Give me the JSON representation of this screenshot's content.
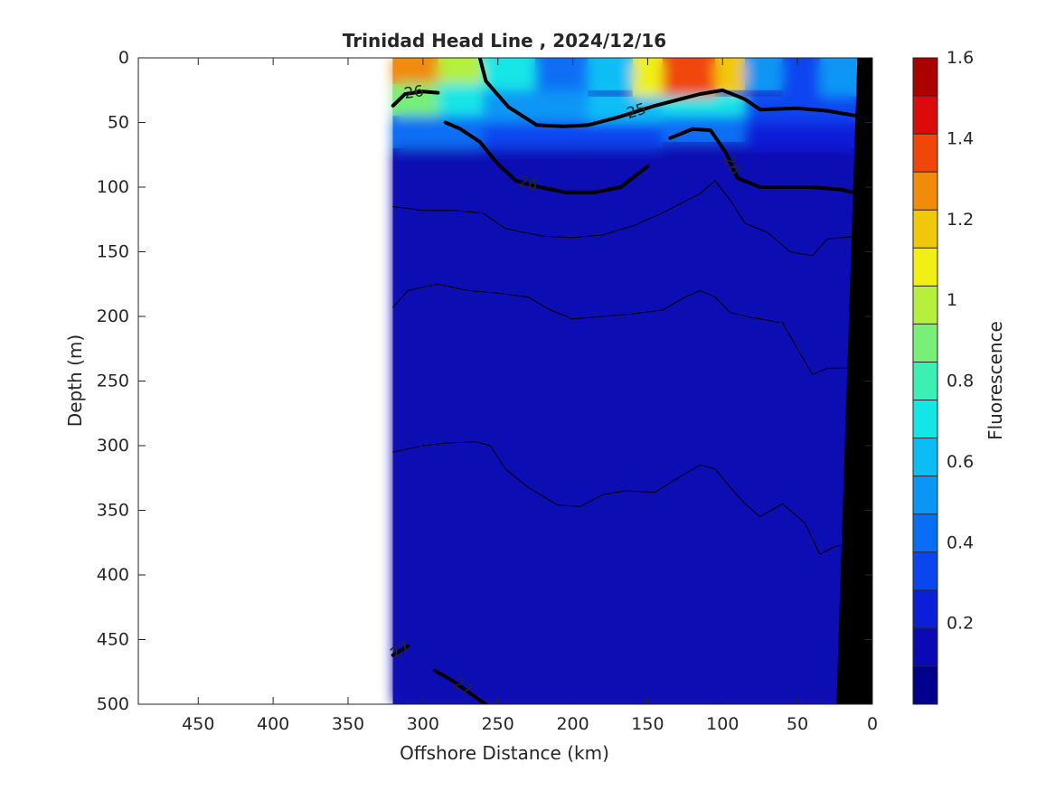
{
  "chart_data": {
    "type": "heatmap",
    "title": "Trinidad Head Line , 2024/12/16",
    "xlabel": "Offshore Distance (km)",
    "ylabel": "Depth (m)",
    "colorbar_label": "Fluorescence",
    "xlim": [
      490,
      0
    ],
    "ylim": [
      0,
      500
    ],
    "x_ticks": [
      "450",
      "400",
      "350",
      "300",
      "250",
      "200",
      "150",
      "100",
      "50",
      "0"
    ],
    "y_ticks": [
      "0",
      "50",
      "100",
      "150",
      "200",
      "250",
      "300",
      "350",
      "400",
      "450",
      "500"
    ],
    "colorbar_ticks": [
      "1.6",
      "1.4",
      "1.2",
      "1",
      "0.8",
      "0.6",
      "0.4",
      "0.2"
    ],
    "colorbar_range": [
      0,
      1.6
    ],
    "data_extent_km": [
      320,
      10
    ],
    "colormap": [
      "#00008f",
      "#0a0ab4",
      "#0a1fd7",
      "#0a45f0",
      "#0a6ef5",
      "#0a96f5",
      "#0abef5",
      "#14e6e6",
      "#3cf0b4",
      "#78f078",
      "#b4f03c",
      "#f0f014",
      "#f0c80a",
      "#f08c0a",
      "#f0460a",
      "#dc0a0a",
      "#aa0000"
    ],
    "cells": [
      {
        "x_km": [
          320,
          290
        ],
        "depth_m": [
          0,
          20
        ],
        "value": 1.25
      },
      {
        "x_km": [
          290,
          260
        ],
        "depth_m": [
          0,
          20
        ],
        "value": 1.0
      },
      {
        "x_km": [
          260,
          225
        ],
        "depth_m": [
          0,
          25
        ],
        "value": 0.7
      },
      {
        "x_km": [
          225,
          190
        ],
        "depth_m": [
          0,
          25
        ],
        "value": 0.45
      },
      {
        "x_km": [
          190,
          160
        ],
        "depth_m": [
          0,
          25
        ],
        "value": 0.65
      },
      {
        "x_km": [
          160,
          140
        ],
        "depth_m": [
          0,
          30
        ],
        "value": 1.05
      },
      {
        "x_km": [
          140,
          105
        ],
        "depth_m": [
          0,
          30
        ],
        "value": 1.4
      },
      {
        "x_km": [
          105,
          85
        ],
        "depth_m": [
          0,
          25
        ],
        "value": 1.15
      },
      {
        "x_km": [
          85,
          60
        ],
        "depth_m": [
          0,
          25
        ],
        "value": 0.55
      },
      {
        "x_km": [
          60,
          35
        ],
        "depth_m": [
          0,
          30
        ],
        "value": 0.35
      },
      {
        "x_km": [
          35,
          10
        ],
        "depth_m": [
          0,
          30
        ],
        "value": 0.5
      },
      {
        "x_km": [
          320,
          290
        ],
        "depth_m": [
          20,
          45
        ],
        "value": 0.85
      },
      {
        "x_km": [
          290,
          260
        ],
        "depth_m": [
          20,
          45
        ],
        "value": 0.7
      },
      {
        "x_km": [
          260,
          225
        ],
        "depth_m": [
          25,
          50
        ],
        "value": 0.55
      },
      {
        "x_km": [
          225,
          190
        ],
        "depth_m": [
          25,
          50
        ],
        "value": 0.5
      },
      {
        "x_km": [
          190,
          140
        ],
        "depth_m": [
          30,
          50
        ],
        "value": 0.6
      },
      {
        "x_km": [
          140,
          85
        ],
        "depth_m": [
          30,
          45
        ],
        "value": 0.7
      },
      {
        "x_km": [
          85,
          10
        ],
        "depth_m": [
          30,
          50
        ],
        "value": 0.35
      },
      {
        "x_km": [
          320,
          260
        ],
        "depth_m": [
          45,
          70
        ],
        "value": 0.45
      },
      {
        "x_km": [
          260,
          190
        ],
        "depth_m": [
          50,
          70
        ],
        "value": 0.35
      },
      {
        "x_km": [
          190,
          140
        ],
        "depth_m": [
          50,
          70
        ],
        "value": 0.3
      },
      {
        "x_km": [
          140,
          85
        ],
        "depth_m": [
          45,
          65
        ],
        "value": 0.4
      },
      {
        "x_km": [
          85,
          10
        ],
        "depth_m": [
          50,
          80
        ],
        "value": 0.25
      },
      {
        "x_km": [
          320,
          10
        ],
        "depth_m": [
          70,
          500
        ],
        "value": 0.1
      }
    ],
    "contours": [
      {
        "label": "25",
        "weight": "bold",
        "points": [
          [
            262,
            0
          ],
          [
            258,
            18
          ],
          [
            243,
            38
          ],
          [
            224,
            52
          ],
          [
            206,
            53
          ],
          [
            190,
            52
          ],
          [
            170,
            46
          ],
          [
            145,
            37
          ],
          [
            115,
            28
          ],
          [
            100,
            25
          ],
          [
            85,
            32
          ],
          [
            75,
            40
          ],
          [
            50,
            39
          ],
          [
            30,
            41
          ],
          [
            10,
            45
          ]
        ]
      },
      {
        "label": "26",
        "weight": "bold",
        "points": [
          [
            320,
            37
          ],
          [
            312,
            28
          ],
          [
            300,
            26
          ],
          [
            290,
            27
          ]
        ]
      },
      {
        "label": "26",
        "weight": "bold",
        "points": [
          [
            285,
            50
          ],
          [
            275,
            55
          ],
          [
            262,
            65
          ],
          [
            250,
            82
          ],
          [
            238,
            95
          ],
          [
            222,
            100
          ],
          [
            205,
            104
          ],
          [
            185,
            104
          ],
          [
            168,
            100
          ],
          [
            150,
            84
          ]
        ]
      },
      {
        "label": "26",
        "weight": "bold",
        "points": [
          [
            135,
            62
          ],
          [
            120,
            55
          ],
          [
            108,
            56
          ],
          [
            98,
            73
          ],
          [
            90,
            93
          ],
          [
            75,
            100
          ],
          [
            40,
            100
          ],
          [
            20,
            102
          ],
          [
            10,
            105
          ]
        ]
      },
      {
        "label": "27",
        "weight": "bold",
        "points": [
          [
            320,
            462
          ],
          [
            310,
            455
          ]
        ]
      },
      {
        "label": "27",
        "weight": "bold",
        "points": [
          [
            292,
            474
          ],
          [
            280,
            482
          ],
          [
            268,
            492
          ],
          [
            258,
            500
          ]
        ]
      },
      {
        "label": "",
        "weight": "thin",
        "points": [
          [
            320,
            115
          ],
          [
            300,
            118
          ],
          [
            280,
            118
          ],
          [
            260,
            120
          ],
          [
            245,
            132
          ],
          [
            220,
            138
          ],
          [
            200,
            139
          ],
          [
            180,
            137
          ],
          [
            160,
            130
          ],
          [
            140,
            120
          ],
          [
            115,
            105
          ],
          [
            105,
            95
          ],
          [
            95,
            110
          ],
          [
            85,
            128
          ],
          [
            70,
            135
          ],
          [
            55,
            150
          ],
          [
            40,
            153
          ],
          [
            30,
            140
          ],
          [
            10,
            138
          ]
        ]
      },
      {
        "label": "",
        "weight": "thin",
        "points": [
          [
            320,
            193
          ],
          [
            310,
            180
          ],
          [
            290,
            175
          ],
          [
            270,
            180
          ],
          [
            250,
            182
          ],
          [
            230,
            185
          ],
          [
            215,
            195
          ],
          [
            200,
            202
          ],
          [
            180,
            200
          ],
          [
            160,
            198
          ],
          [
            140,
            195
          ],
          [
            125,
            185
          ],
          [
            115,
            180
          ],
          [
            105,
            185
          ],
          [
            95,
            197
          ],
          [
            80,
            201
          ],
          [
            60,
            205
          ],
          [
            50,
            225
          ],
          [
            40,
            245
          ],
          [
            30,
            240
          ],
          [
            20,
            240
          ],
          [
            10,
            240
          ]
        ]
      },
      {
        "label": "",
        "weight": "thin",
        "points": [
          [
            320,
            305
          ],
          [
            300,
            300
          ],
          [
            285,
            298
          ],
          [
            265,
            297
          ],
          [
            255,
            300
          ],
          [
            245,
            318
          ],
          [
            230,
            332
          ],
          [
            210,
            346
          ],
          [
            195,
            347
          ],
          [
            180,
            338
          ],
          [
            165,
            335
          ],
          [
            145,
            336
          ],
          [
            130,
            325
          ],
          [
            115,
            315
          ],
          [
            105,
            318
          ],
          [
            95,
            332
          ],
          [
            85,
            345
          ],
          [
            75,
            355
          ],
          [
            60,
            345
          ],
          [
            45,
            360
          ],
          [
            35,
            384
          ],
          [
            25,
            378
          ],
          [
            10,
            375
          ]
        ]
      }
    ],
    "bathymetry_points": [
      [
        10,
        0
      ],
      [
        24,
        500
      ],
      [
        0,
        500
      ],
      [
        0,
        0
      ]
    ]
  }
}
